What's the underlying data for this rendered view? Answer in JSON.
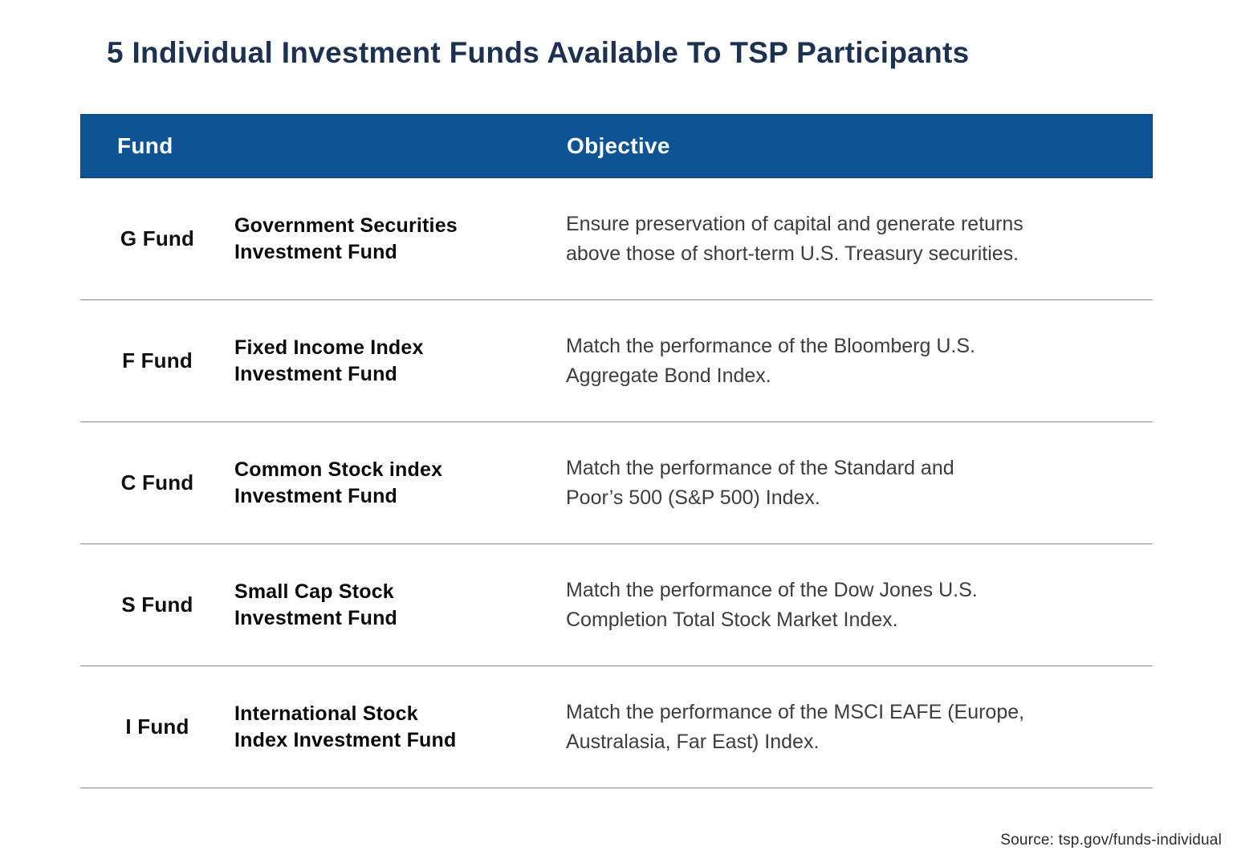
{
  "page": {
    "title": "5 Individual Investment Funds Available To TSP Participants",
    "source": "Source: tsp.gov/funds-individual"
  },
  "colors": {
    "header_background": "#0e5494",
    "header_text": "#ffffff",
    "title_text": "#1d3150",
    "separator": "#8c8c8c"
  },
  "table": {
    "headers": [
      "Fund",
      "Objective"
    ],
    "rows": [
      {
        "code": "G Fund",
        "name": "Government Securities\nInvestment Fund",
        "objective": "Ensure preservation of capital and generate returns\nabove those of short-term U.S. Treasury securities."
      },
      {
        "code": "F Fund",
        "name": "Fixed Income Index\nInvestment Fund",
        "objective": "Match the performance of the Bloomberg U.S.\nAggregate Bond Index."
      },
      {
        "code": "C Fund",
        "name": "Common Stock index\nInvestment Fund",
        "objective": "Match the performance of the Standard and\nPoor’s 500 (S&P 500) Index."
      },
      {
        "code": "S Fund",
        "name": "Small Cap Stock\nInvestment Fund",
        "objective": "Match the performance of the Dow Jones U.S.\nCompletion Total Stock Market Index."
      },
      {
        "code": "I Fund",
        "name": "International Stock\nIndex Investment Fund",
        "objective": "Match the performance of the MSCI EAFE (Europe,\nAustralasia, Far East) Index."
      }
    ]
  }
}
